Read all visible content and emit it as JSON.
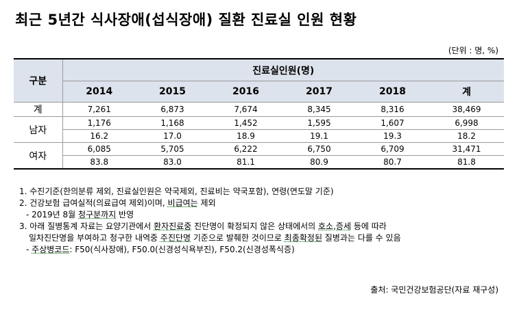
{
  "title": "최근 5년간 식사장애(섭식장애) 질환 진료실 인원 현황",
  "unit": "(단위 : 명, %)",
  "table": {
    "corner_label": "구분",
    "span_header": "진료실인원(명)",
    "columns": [
      "2014",
      "2015",
      "2016",
      "2017",
      "2018",
      "계"
    ],
    "groups": [
      {
        "label": "계",
        "rows": [
          [
            "7,261",
            "6,873",
            "7,674",
            "8,345",
            "8,316",
            "38,469"
          ]
        ]
      },
      {
        "label": "남자",
        "rows": [
          [
            "1,176",
            "1,168",
            "1,452",
            "1,595",
            "1,607",
            "6,998"
          ],
          [
            "16.2",
            "17.0",
            "18.9",
            "19.1",
            "19.3",
            "18.2"
          ]
        ]
      },
      {
        "label": "여자",
        "rows": [
          [
            "6,085",
            "5,705",
            "6,222",
            "6,750",
            "6,709",
            "31,471"
          ],
          [
            "83.8",
            "83.0",
            "81.1",
            "80.9",
            "80.7",
            "81.8"
          ]
        ]
      }
    ]
  },
  "notes": {
    "n1": "1. 수진기준(한의분류 제외, 진료실인원은 약국제외, 진료비는 약국포함), 연령(연도말 기준)",
    "n2a": "2. 건강보험 급여실적(의료급여 제외)이며, ",
    "n2b": "비급여는",
    "n2c": " 제외",
    "n2sub_a": "- 2019년 8월 ",
    "n2sub_b": "청구분까지",
    "n2sub_c": " 반영",
    "n3a": "3. 아래 질병통계 자료는 요양기관에서 ",
    "n3b": "환자진료중",
    "n3c": " 진단명이 확정되지 않은 상태에서의 ",
    "n3d": "호소,증세",
    "n3e": " 등에 따라",
    "n3f": "일차진단명을 부여하고 청구한 내역중 ",
    "n3g": "주진단명",
    "n3h": " 기준으로 발췌한 것이므로 ",
    "n3i": "최종확정된",
    "n3j": " 질병과는 다를 수 있음",
    "n4a": "- ",
    "n4b": "주상병코드",
    "n4c": ":  F50(식사장애), F50.0(신경성식욕부진),  F50.2(신경성폭식증)"
  },
  "source": "출처: 국민건강보험공단(자료 재구성)"
}
